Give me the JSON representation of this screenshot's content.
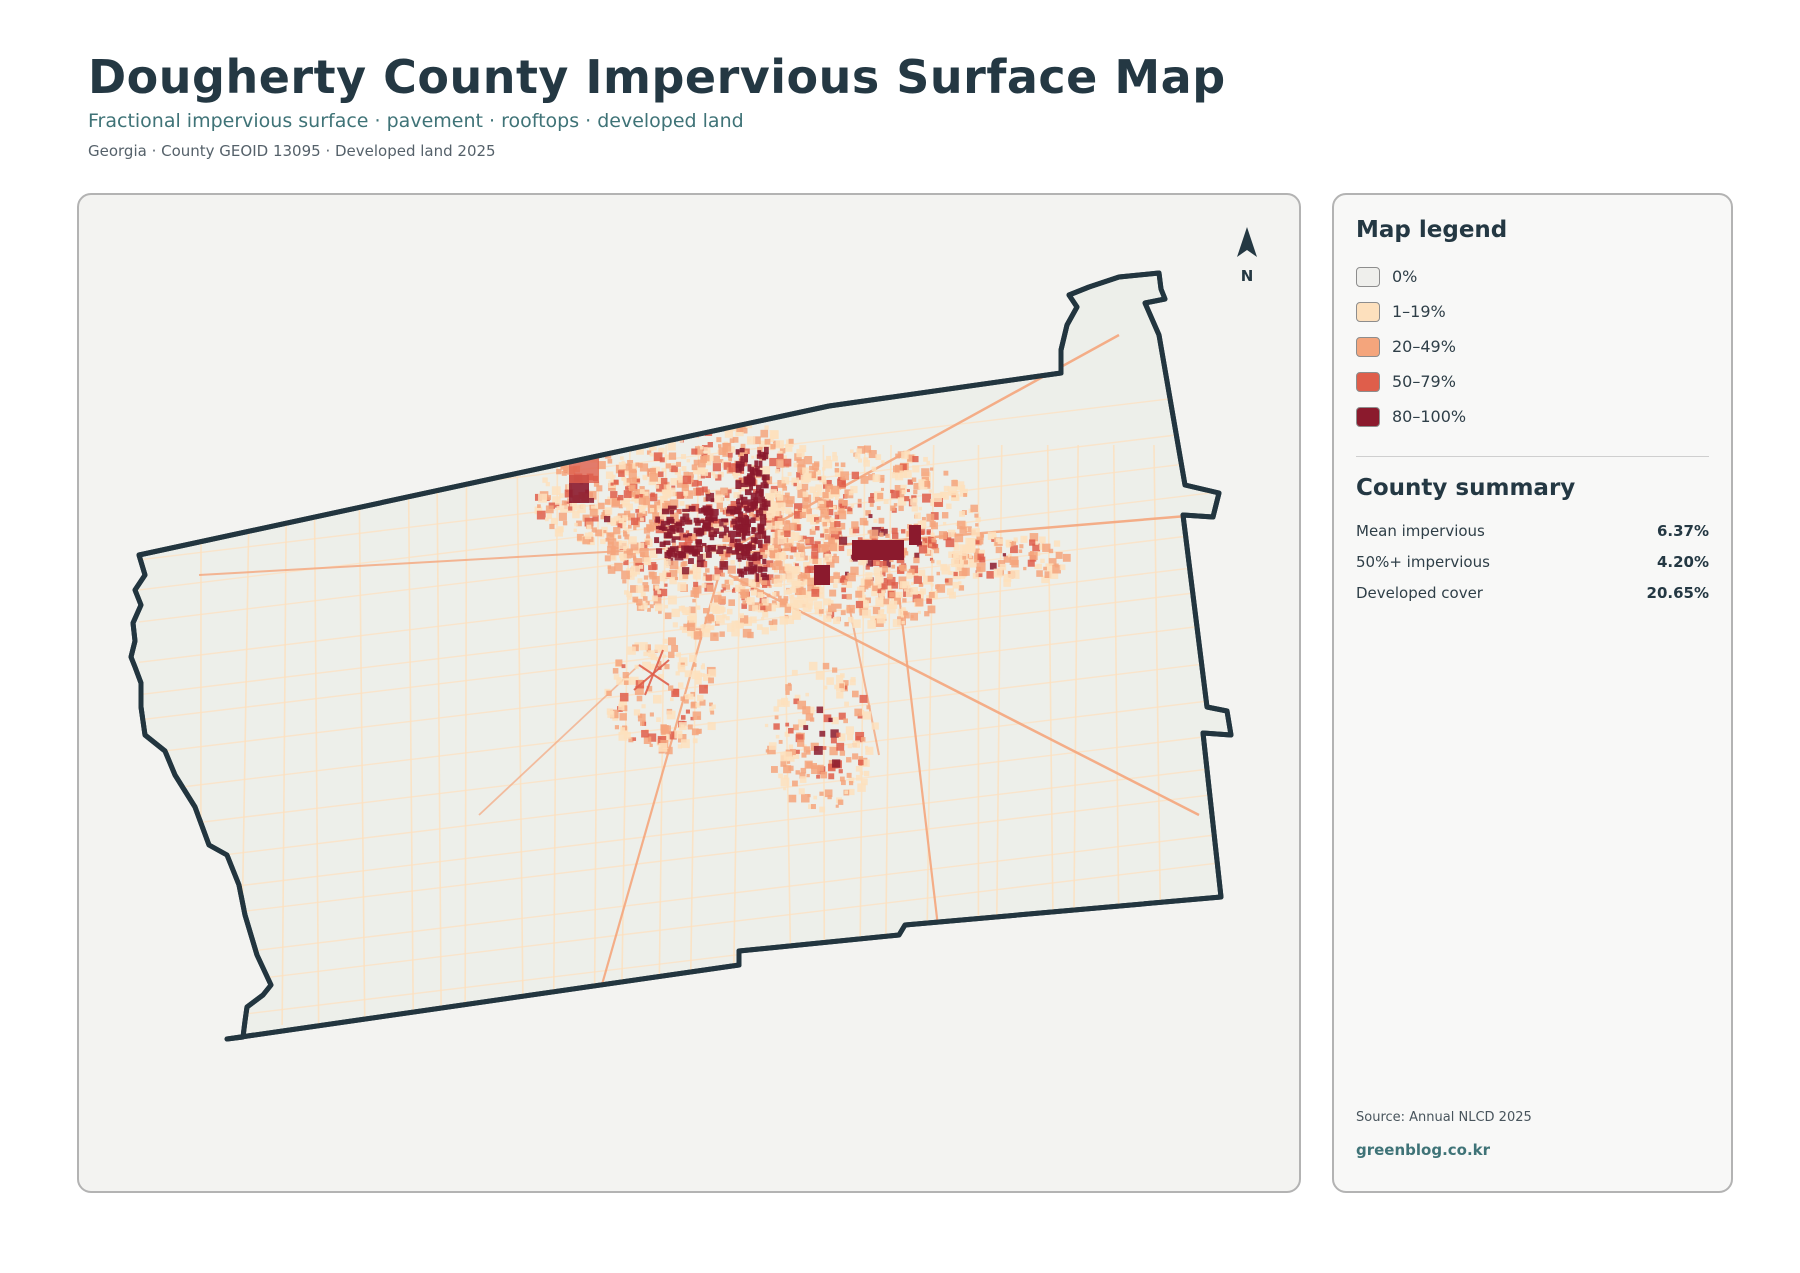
{
  "header": {
    "title": "Dougherty County Impervious Surface Map",
    "subtitle": "Fractional impervious surface · pavement · rooftops · developed land",
    "meta": "Georgia · County GEOID 13095 · Developed land 2025"
  },
  "map": {
    "north_label": "N",
    "colors": {
      "boundary": "#22353f",
      "land": "#edefea",
      "panel": "#f3f3f1"
    }
  },
  "legend": {
    "title": "Map legend",
    "items": [
      {
        "label": "0%",
        "color": "#efefec"
      },
      {
        "label": "1–19%",
        "color": "#fde0bd"
      },
      {
        "label": "20–49%",
        "color": "#f4a57c"
      },
      {
        "label": "50–79%",
        "color": "#df5e4b"
      },
      {
        "label": "80–100%",
        "color": "#8b1a2d"
      }
    ]
  },
  "summary": {
    "title": "County summary",
    "stats": [
      {
        "label": "Mean impervious",
        "value": "6.37%"
      },
      {
        "label": "50%+ impervious",
        "value": "4.20%"
      },
      {
        "label": "Developed cover",
        "value": "20.65%"
      }
    ]
  },
  "footer": {
    "source": "Source: Annual NLCD 2025",
    "credit": "greenblog.co.kr"
  }
}
